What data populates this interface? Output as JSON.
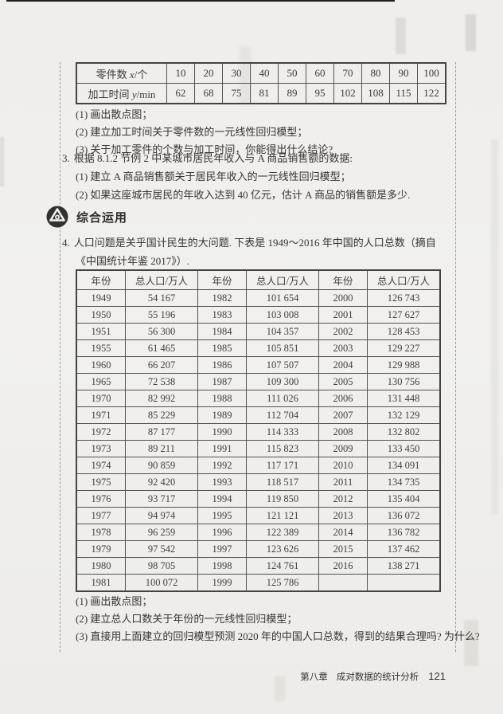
{
  "exercise2": {
    "table": {
      "row1": {
        "pre": "零件数 ",
        "var": "x",
        "post": "/个",
        "values": [
          "10",
          "20",
          "30",
          "40",
          "50",
          "60",
          "70",
          "80",
          "90",
          "100"
        ]
      },
      "row2": {
        "pre": "加工时间 ",
        "var": "y",
        "post": "/min",
        "values": [
          "62",
          "68",
          "75",
          "81",
          "89",
          "95",
          "102",
          "108",
          "115",
          "122"
        ]
      }
    },
    "questions": [
      "(1) 画出散点图；",
      "(2) 建立加工时间关于零件数的一元线性回归模型；",
      "(3) 关于加工零件的个数与加工时间，你能得出什么结论?"
    ]
  },
  "exercise3": {
    "number": "3.",
    "text": "根据 8.1.2 节例 2 中某城市居民年收入与 A 商品销售额的数据:",
    "questions": [
      "(1) 建立 A 商品销售额关于居民年收入的一元线性回归模型；",
      "(2) 如果这座城市居民的年收入达到 40 亿元，估计 A 商品的销售额是多少."
    ]
  },
  "section": {
    "title": "综合运用"
  },
  "exercise4": {
    "number": "4.",
    "text": "人口问题是关乎国计民生的大问题. 下表是 1949～2016 年中国的人口总数（摘自《中国统计年鉴 2017》）.",
    "table": {
      "headers": [
        "年份",
        "总人口/万人",
        "年份",
        "总人口/万人",
        "年份",
        "总人口/万人"
      ],
      "rows": [
        [
          "1949",
          "54 167",
          "1982",
          "101 654",
          "2000",
          "126 743"
        ],
        [
          "1950",
          "55 196",
          "1983",
          "103 008",
          "2001",
          "127 627"
        ],
        [
          "1951",
          "56 300",
          "1984",
          "104 357",
          "2002",
          "128 453"
        ],
        [
          "1955",
          "61 465",
          "1985",
          "105 851",
          "2003",
          "129 227"
        ],
        [
          "1960",
          "66 207",
          "1986",
          "107 507",
          "2004",
          "129 988"
        ],
        [
          "1965",
          "72 538",
          "1987",
          "109 300",
          "2005",
          "130 756"
        ],
        [
          "1970",
          "82 992",
          "1988",
          "111 026",
          "2006",
          "131 448"
        ],
        [
          "1971",
          "85 229",
          "1989",
          "112 704",
          "2007",
          "132 129"
        ],
        [
          "1972",
          "87 177",
          "1990",
          "114 333",
          "2008",
          "132 802"
        ],
        [
          "1973",
          "89 211",
          "1991",
          "115 823",
          "2009",
          "133 450"
        ],
        [
          "1974",
          "90 859",
          "1992",
          "117 171",
          "2010",
          "134 091"
        ],
        [
          "1975",
          "92 420",
          "1993",
          "118 517",
          "2011",
          "134 735"
        ],
        [
          "1976",
          "93 717",
          "1994",
          "119 850",
          "2012",
          "135 404"
        ],
        [
          "1977",
          "94 974",
          "1995",
          "121 121",
          "2013",
          "136 072"
        ],
        [
          "1978",
          "96 259",
          "1996",
          "122 389",
          "2014",
          "136 782"
        ],
        [
          "1979",
          "97 542",
          "1997",
          "123 626",
          "2015",
          "137 462"
        ],
        [
          "1980",
          "98 705",
          "1998",
          "124 761",
          "2016",
          "138 271"
        ],
        [
          "1981",
          "100 072",
          "1999",
          "125 786",
          "",
          ""
        ]
      ]
    },
    "questions": [
      "(1) 画出散点图；",
      "(2) 建立总人口数关于年份的一元线性回归模型；",
      "(3) 直接用上面建立的回归模型预测 2020 年的中国人口总数，得到的结果合理吗? 为什么?"
    ]
  },
  "footer": {
    "chapter": "第八章",
    "title": "成对数据的统计分析",
    "page_number": "121"
  }
}
